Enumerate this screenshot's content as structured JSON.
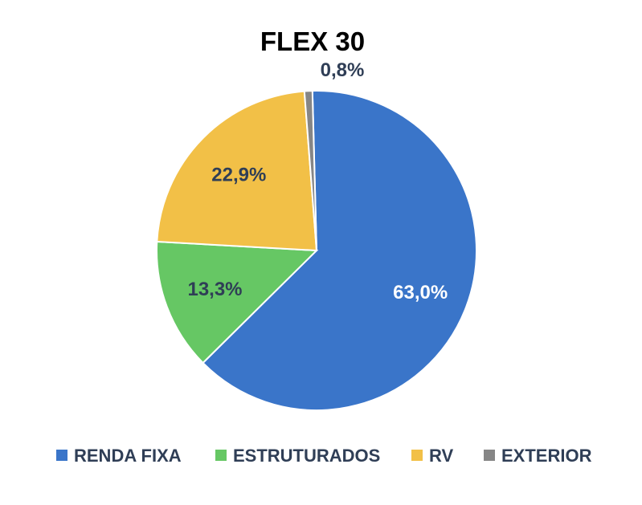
{
  "chart_data": {
    "type": "pie",
    "title": "FLEX 30",
    "categories": [
      "RENDA FIXA",
      "ESTRUTURADOS",
      "RV",
      "EXTERIOR"
    ],
    "values": [
      63.0,
      13.3,
      22.9,
      0.8
    ],
    "value_labels": [
      "63,0%",
      "13,3%",
      "22,9%",
      "0,8%"
    ],
    "colors": [
      "#3a75c9",
      "#66c764",
      "#f2c047",
      "#868686"
    ],
    "label_colors": [
      "#ffffff",
      "#2f3e56",
      "#2f3e56",
      "#2f3e56"
    ],
    "start_angle_deg": -1.5,
    "direction": "clockwise",
    "legend_position": "bottom"
  }
}
